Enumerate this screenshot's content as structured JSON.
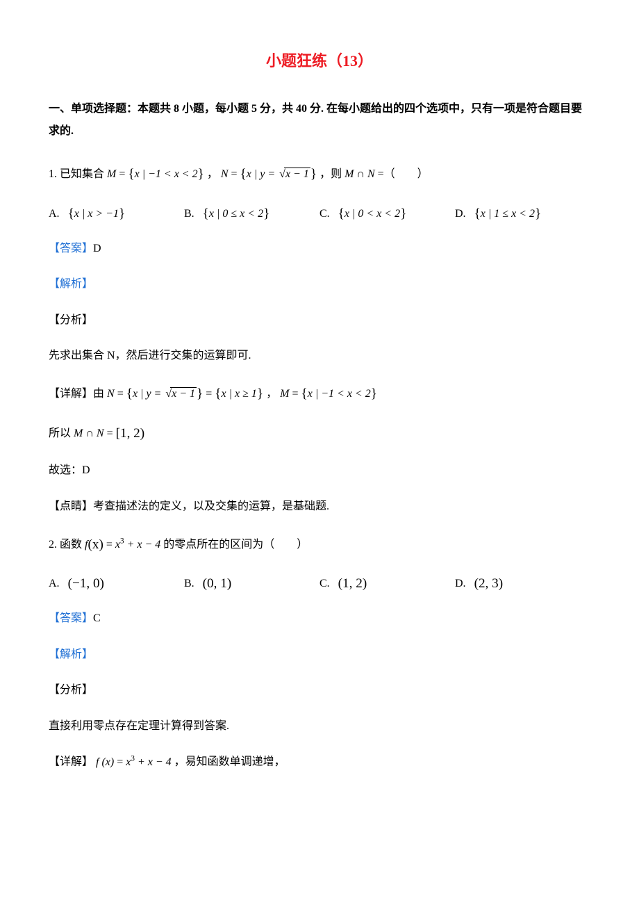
{
  "colors": {
    "title": "#ed1c24",
    "link": "#1f6fd4",
    "text": "#000000",
    "background": "#ffffff"
  },
  "typography": {
    "body_font": "SimSun",
    "math_font": "Times New Roman",
    "body_size_pt": 12,
    "title_size_pt": 16
  },
  "title": "小题狂练（13）",
  "section_intro": "一、单项选择题：本题共 8 小题，每小题 5 分，共 40 分. 在每小题给出的四个选项中，只有一项是符合题目要求的.",
  "q1": {
    "number": "1.",
    "stem_prefix": "已知集合 ",
    "stem_M_lhs": "M",
    "stem_M_eq": " = ",
    "stem_M_set_inner": "x | −1 < x < 2",
    "stem_sep": "，",
    "stem_N_lhs": "N",
    "stem_N_eq": " = ",
    "stem_N_set_inner_pre": "x | y = ",
    "stem_N_sqrt_body": "x − 1",
    "stem_suffix": "，则 ",
    "stem_expr": "M ∩ N",
    "stem_tail": " =（　　）",
    "options": {
      "A": {
        "label": "A.",
        "pre": "",
        "inner": "x | x > −1"
      },
      "B": {
        "label": "B.",
        "pre": "",
        "inner": "x | 0 ≤ x < 2"
      },
      "C": {
        "label": "C.",
        "pre": "",
        "inner": "x | 0 < x < 2"
      },
      "D": {
        "label": "D.",
        "pre": "",
        "inner": "x | 1 ≤ x < 2"
      }
    },
    "answer_label": "【答案】",
    "answer": "D",
    "analysis_label": "【解析】",
    "fenxi_label": "【分析】",
    "fenxi_text": "先求出集合 N，然后进行交集的运算即可.",
    "detail_label": "【详解】",
    "detail_pre": "由 ",
    "detail_N_lhs": "N",
    "detail_N_eq": " = ",
    "detail_N_set_inner_pre": "x | y = ",
    "detail_N_sqrt_body": "x − 1",
    "detail_N_eq2": " = ",
    "detail_N_set2_inner": "x | x ≥ 1",
    "detail_sep": "，",
    "detail_M_lhs": "M",
    "detail_M_eq": " = ",
    "detail_M_set_inner": "x | −1 < x < 2",
    "detail_line2_pre": "所以 ",
    "detail_line2_expr": "M ∩ N",
    "detail_line2_eq": " = ",
    "detail_line2_interval": "[1, 2)",
    "guxuan_label": "故选：",
    "guxuan_value": "D",
    "dianjing_label": "【点睛】",
    "dianjing_text": "考查描述法的定义，以及交集的运算，是基础题."
  },
  "q2": {
    "number": "2.",
    "stem_prefix": "函数 ",
    "stem_f": "f",
    "stem_paren_x": "(x)",
    "stem_eq": " = ",
    "stem_rhs_a": "x",
    "stem_rhs_sup": "3",
    "stem_rhs_b": " + x − 4",
    "stem_suffix": " 的零点所在的区间为（　　）",
    "options": {
      "A": {
        "label": "A.",
        "interval": "(−1, 0)"
      },
      "B": {
        "label": "B.",
        "interval": "(0, 1)"
      },
      "C": {
        "label": "C.",
        "interval": "(1, 2)"
      },
      "D": {
        "label": "D.",
        "interval": "(2, 3)"
      }
    },
    "answer_label": "【答案】",
    "answer": "C",
    "analysis_label": "【解析】",
    "fenxi_label": "【分析】",
    "fenxi_text": "直接利用零点存在定理计算得到答案.",
    "detail_label": "【详解】",
    "detail_f": "f (x)",
    "detail_eq": " = ",
    "detail_rhs_a": "x",
    "detail_rhs_sup": "3",
    "detail_rhs_b": " + x − 4",
    "detail_suffix": " ，易知函数单调递增，"
  }
}
